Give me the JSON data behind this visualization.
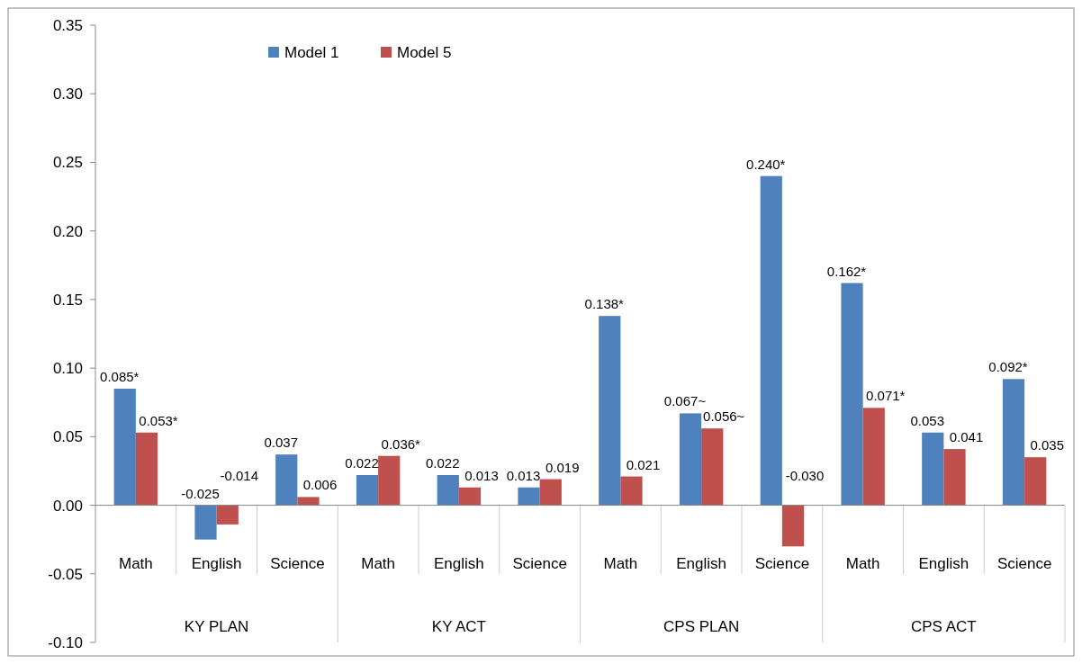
{
  "chart_data": {
    "type": "bar",
    "categories": [
      "Math",
      "English",
      "Science",
      "Math",
      "English",
      "Science",
      "Math",
      "English",
      "Science",
      "Math",
      "English",
      "Science"
    ],
    "series": [
      {
        "name": "Model 1",
        "color": "#4f81bd",
        "values": [
          0.085,
          -0.025,
          0.037,
          0.022,
          0.022,
          0.013,
          0.138,
          0.067,
          0.24,
          0.162,
          0.053,
          0.092
        ],
        "value_labels": [
          "0.085*",
          "-0.025",
          "0.037",
          "0.022",
          "0.022",
          "0.013",
          "0.138*",
          "0.067~",
          "0.240*",
          "0.162*",
          "0.053",
          "0.092*"
        ]
      },
      {
        "name": "Model 5",
        "color": "#c0504d",
        "values": [
          0.053,
          -0.014,
          0.006,
          0.036,
          0.013,
          0.019,
          0.021,
          0.056,
          -0.03,
          0.071,
          0.041,
          0.035
        ],
        "value_labels": [
          "0.053*",
          "-0.014",
          "0.006",
          "0.036*",
          "0.013",
          "0.019",
          "0.021",
          "0.056~",
          "-0.030",
          "0.071*",
          "0.041",
          "0.035"
        ]
      }
    ],
    "annotations": [
      "KY PLAN",
      "KY ACT",
      "CPS PLAN",
      "CPS ACT"
    ],
    "ylim": [
      -0.1,
      0.35
    ],
    "yticks": [
      {
        "value": -0.1,
        "label": "-0.10"
      },
      {
        "value": -0.05,
        "label": "-0.05"
      },
      {
        "value": 0,
        "label": "0.00"
      },
      {
        "value": 0.05,
        "label": "0.05"
      },
      {
        "value": 0.1,
        "label": "0.10"
      },
      {
        "value": 0.15,
        "label": "0.15"
      },
      {
        "value": 0.2,
        "label": "0.20"
      },
      {
        "value": 0.25,
        "label": "0.25"
      },
      {
        "value": 0.3,
        "label": "0.30"
      },
      {
        "value": 0.35,
        "label": "0.35"
      }
    ],
    "legend": "top"
  }
}
